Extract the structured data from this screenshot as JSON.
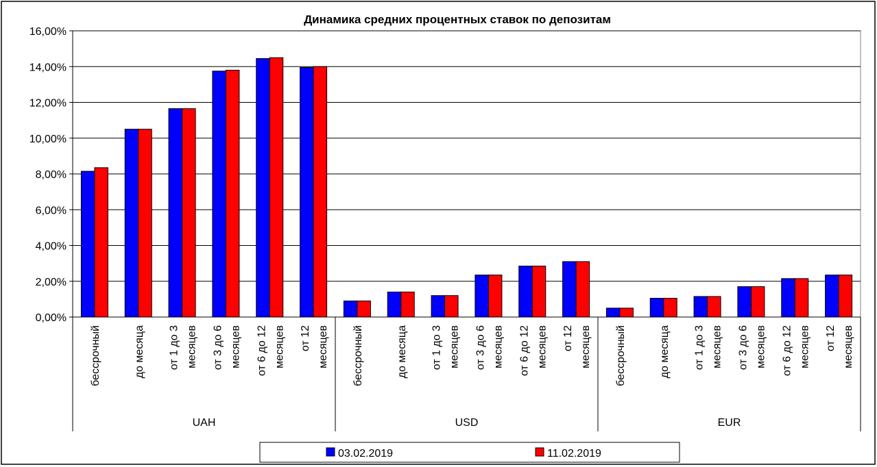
{
  "chart_data": {
    "type": "bar",
    "title": "Динамика средних процентных ставок по депозитам",
    "ylim": [
      0,
      16
    ],
    "ytick_step": 2,
    "ytick_format": "percent_2dp_comma",
    "grid": true,
    "legend_position": "bottom",
    "groups": [
      {
        "name": "UAH",
        "categories": [
          [
            "бессрочный"
          ],
          [
            "до месяца"
          ],
          [
            "от 1 до 3",
            "месяцев"
          ],
          [
            "от 3 до 6",
            "месяцев"
          ],
          [
            "от 6 до 12",
            "месяцев"
          ],
          [
            "от 12",
            "месяцев"
          ]
        ]
      },
      {
        "name": "USD",
        "categories": [
          [
            "бессрочный"
          ],
          [
            "до месяца"
          ],
          [
            "от 1 до 3",
            "месяцев"
          ],
          [
            "от 3 до 6",
            "месяцев"
          ],
          [
            "от 6 до 12",
            "месяцев"
          ],
          [
            "от 12",
            "месяцев"
          ]
        ]
      },
      {
        "name": "EUR",
        "categories": [
          [
            "бессрочный"
          ],
          [
            "до месяца"
          ],
          [
            "от 1 до 3",
            "месяцев"
          ],
          [
            "от 3 до 6",
            "месяцев"
          ],
          [
            "от 6 до 12",
            "месяцев"
          ],
          [
            "от 12",
            "месяцев"
          ]
        ]
      }
    ],
    "series": [
      {
        "name": "03.02.2019",
        "color": "#0000ff",
        "values": [
          8.15,
          10.5,
          11.65,
          13.75,
          14.45,
          13.95,
          0.9,
          1.4,
          1.2,
          2.35,
          2.85,
          3.1,
          0.5,
          1.05,
          1.15,
          1.7,
          2.15,
          2.35
        ]
      },
      {
        "name": "11.02.2019",
        "color": "#ff0000",
        "values": [
          8.35,
          10.5,
          11.65,
          13.8,
          14.5,
          14.0,
          0.9,
          1.4,
          1.2,
          2.35,
          2.85,
          3.1,
          0.5,
          1.05,
          1.15,
          1.7,
          2.15,
          2.35
        ]
      }
    ]
  }
}
